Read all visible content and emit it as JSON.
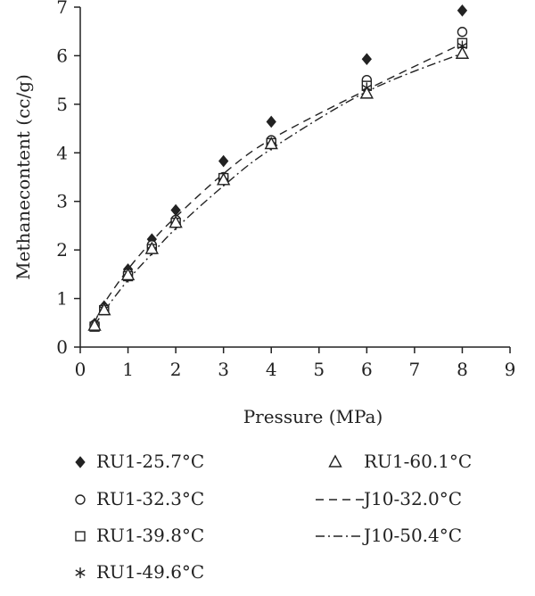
{
  "chart_data": {
    "type": "scatter",
    "title": "",
    "xlabel": "Pressure (MPa)",
    "ylabel": "Methanecontent (cc/g)",
    "xlim": [
      0,
      9
    ],
    "ylim": [
      0,
      7
    ],
    "xticks": [
      "0",
      "1",
      "2",
      "3",
      "4",
      "5",
      "6",
      "7",
      "8",
      "9"
    ],
    "yticks": [
      "0",
      "1",
      "2",
      "3",
      "4",
      "5",
      "6",
      "7"
    ],
    "grid": false,
    "legend_position": "bottom",
    "series": [
      {
        "name": "RU1-25.7°C",
        "marker": "diamond",
        "x": [
          0.3,
          0.5,
          1.0,
          1.5,
          2.0,
          3.0,
          4.0,
          6.0,
          8.0
        ],
        "y": [
          0.48,
          0.84,
          1.6,
          2.22,
          2.82,
          3.83,
          4.64,
          5.93,
          6.93
        ]
      },
      {
        "name": "RU1-32.3°C",
        "marker": "circle",
        "x": [
          0.3,
          0.5,
          1.0,
          1.5,
          2.0,
          3.0,
          4.0,
          6.0,
          8.0
        ],
        "y": [
          0.46,
          0.8,
          1.52,
          2.1,
          2.62,
          3.5,
          4.26,
          5.5,
          6.49
        ]
      },
      {
        "name": "RU1-39.8°C",
        "marker": "square",
        "x": [
          0.3,
          0.5,
          1.0,
          1.5,
          2.0,
          3.0,
          4.0,
          6.0,
          8.0
        ],
        "y": [
          0.42,
          0.76,
          1.46,
          2.02,
          2.56,
          3.48,
          4.2,
          5.38,
          6.26
        ]
      },
      {
        "name": "RU1-49.6°C",
        "marker": "asterisk",
        "x": [
          0.3,
          0.5,
          1.0,
          1.5,
          2.0,
          3.0,
          4.0,
          6.0,
          8.0
        ],
        "y": [
          0.44,
          0.78,
          1.44,
          2.0,
          2.52,
          3.42,
          4.16,
          5.34,
          6.2
        ]
      },
      {
        "name": "RU1-60.1°C",
        "marker": "triangle",
        "x": [
          0.3,
          0.5,
          1.0,
          1.5,
          2.0,
          3.0,
          4.0,
          6.0,
          8.0
        ],
        "y": [
          0.44,
          0.76,
          1.48,
          2.02,
          2.56,
          3.44,
          4.18,
          5.22,
          6.04
        ]
      },
      {
        "name": "J10-32.0°C",
        "line": "dash",
        "x": [
          0.3,
          0.5,
          1.0,
          1.5,
          2.0,
          3.0,
          4.0,
          6.0,
          8.0
        ],
        "y": [
          0.5,
          0.9,
          1.6,
          2.18,
          2.68,
          3.57,
          4.28,
          5.3,
          6.25
        ]
      },
      {
        "name": "J10-50.4°C",
        "line": "dashdot",
        "x": [
          0.3,
          0.5,
          1.0,
          1.5,
          2.0,
          3.0,
          4.0,
          6.0,
          8.0
        ],
        "y": [
          0.44,
          0.74,
          1.38,
          1.92,
          2.44,
          3.32,
          4.08,
          5.26,
          6.05
        ]
      }
    ]
  },
  "colors": {
    "ink": "#222222",
    "background": "#ffffff"
  }
}
